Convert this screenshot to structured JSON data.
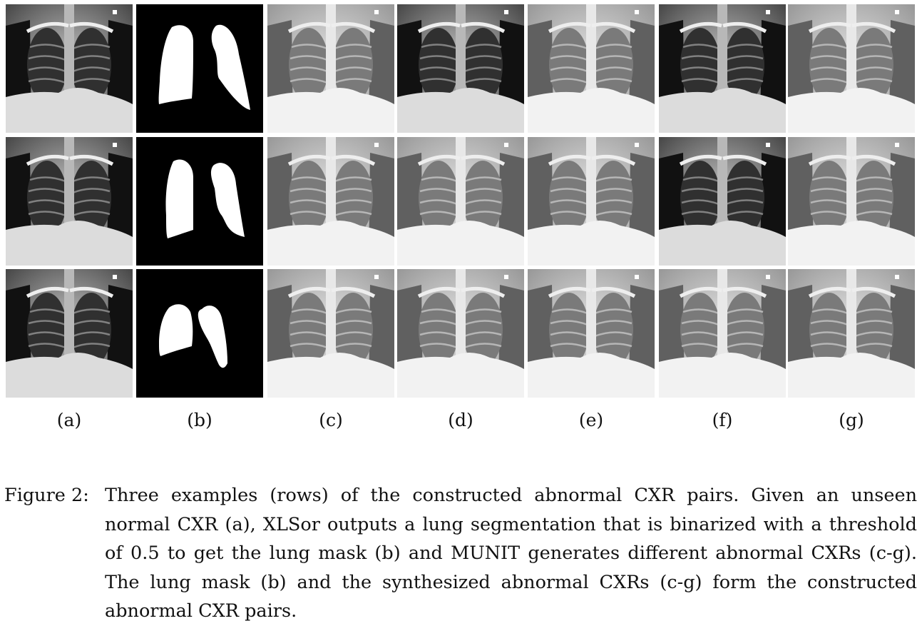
{
  "panels": [
    "(a)",
    "(b)",
    "(c)",
    "(d)",
    "(e)",
    "(f)",
    "(g)"
  ],
  "rows": [
    {
      "variants": [
        "normal",
        "mask",
        "abnormal",
        "abnormal",
        "abnormal-bright",
        "abnormal",
        "abnormal"
      ]
    },
    {
      "variants": [
        "normal",
        "mask",
        "abnormal",
        "abnormal-bright",
        "abnormal",
        "abnormal",
        "abnormal-bright"
      ]
    },
    {
      "variants": [
        "normal",
        "mask",
        "abnormal",
        "abnormal-bright",
        "abnormal",
        "abnormal-bright",
        "abnormal"
      ]
    }
  ],
  "caption": {
    "label": "Figure 2:",
    "text": "Three examples (rows) of the constructed abnormal CXR pairs. Given an unseen normal CXR (a), XLSor outputs a lung segmentation that is binarized with a threshold of 0.5 to get the lung mask (b) and MUNIT generates different abnormal CXRs (c-g). The lung mask (b) and the synthesized abnormal CXRs (c-g) form the constructed abnormal CXR pairs."
  }
}
